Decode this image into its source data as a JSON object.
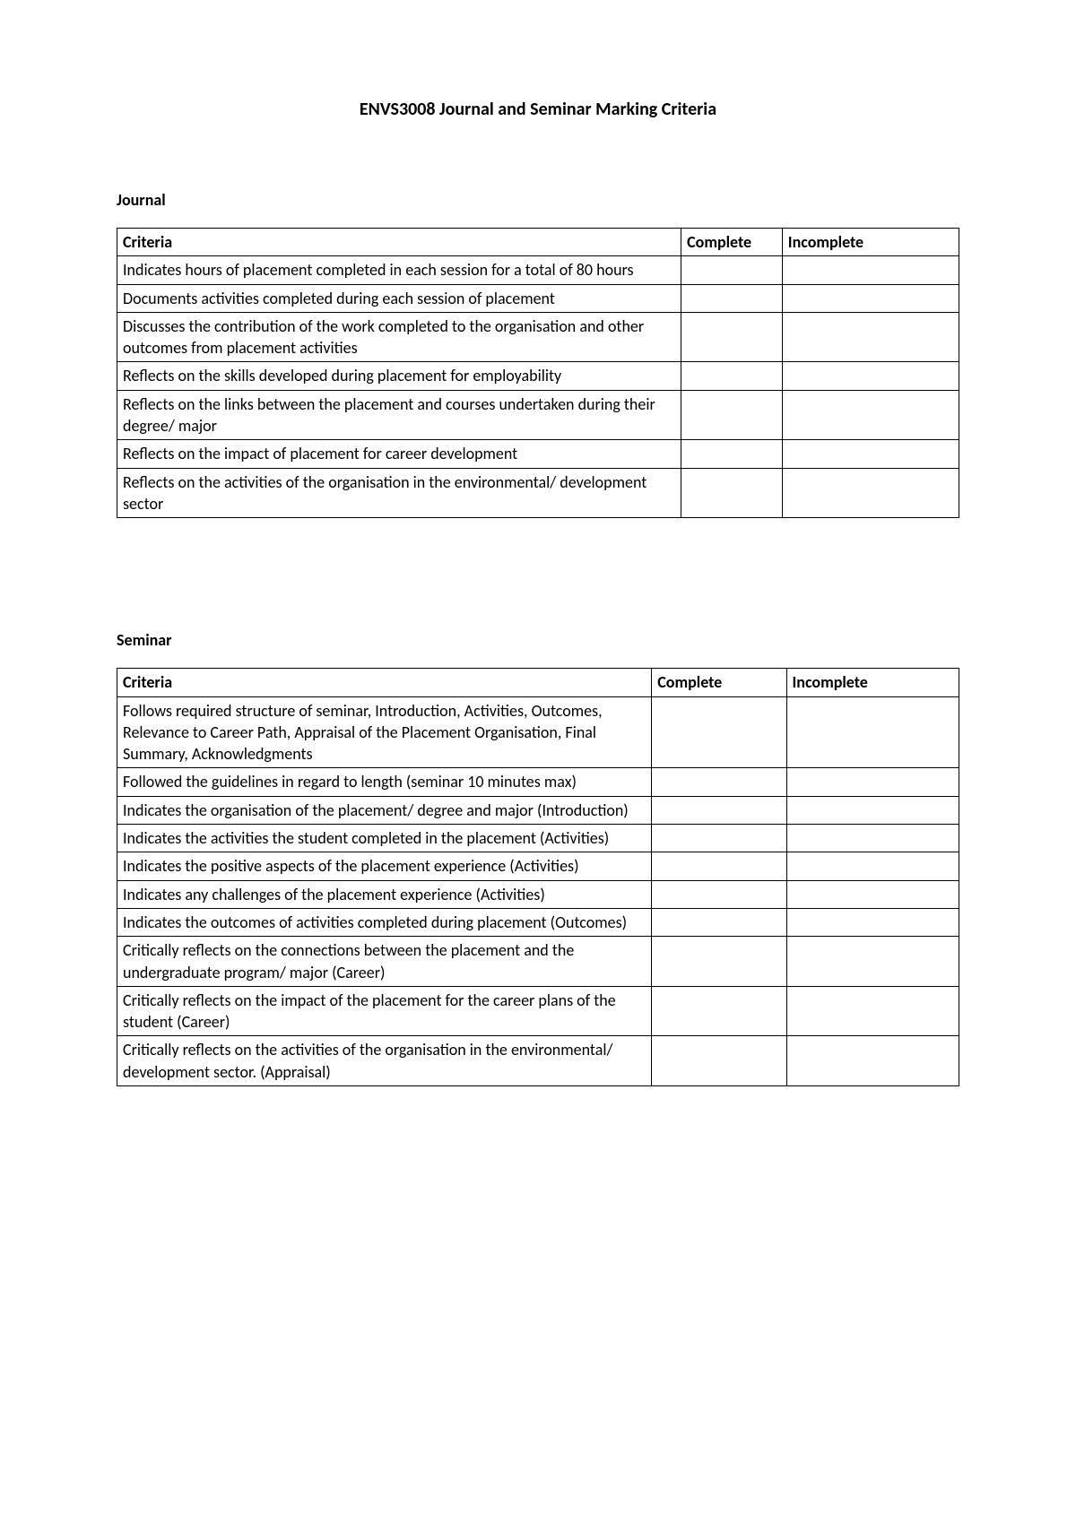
{
  "title": "ENVS3008 Journal and Seminar Marking Criteria",
  "colors": {
    "background": "#ffffff",
    "text": "#000000",
    "table_border": "#000000"
  },
  "typography": {
    "font_family": "Calibri",
    "title_size_pt": 12,
    "heading_size_pt": 11,
    "body_size_pt": 11
  },
  "journal": {
    "heading": "Journal",
    "columns": [
      "Criteria",
      "Complete",
      "Incomplete"
    ],
    "rows": [
      "Indicates hours of placement completed in each session for a total of 80 hours",
      "Documents activities completed during each session of placement",
      "Discusses the contribution of the work completed to the organisation and other outcomes from placement activities",
      "Reflects on the skills developed during placement for employability",
      "Reflects on the links between the placement and courses undertaken during their degree/ major",
      "Reflects on the impact of placement for career development",
      "Reflects on the activities of the organisation in the environmental/ development sector"
    ]
  },
  "seminar": {
    "heading": "Seminar",
    "columns": [
      "Criteria",
      "Complete",
      "Incomplete"
    ],
    "rows": [
      "Follows required structure of seminar, Introduction, Activities, Outcomes, Relevance to Career Path, Appraisal of the Placement Organisation, Final Summary, Acknowledgments",
      "Followed the guidelines in regard to length (seminar 10 minutes max)",
      "Indicates the organisation of the placement/ degree and major (Introduction)",
      "Indicates the activities the student completed in the placement (Activities)",
      "Indicates the positive aspects of the placement experience (Activities)",
      "Indicates any challenges of the placement experience (Activities)",
      "Indicates the outcomes of activities completed during placement (Outcomes)",
      "Critically reflects on the connections between the placement and the undergraduate program/ major (Career)",
      "Critically reflects on the impact of the placement for the career plans of the student (Career)",
      "Critically reflects on the activities of the organisation in the environmental/ development sector. (Appraisal)"
    ]
  }
}
